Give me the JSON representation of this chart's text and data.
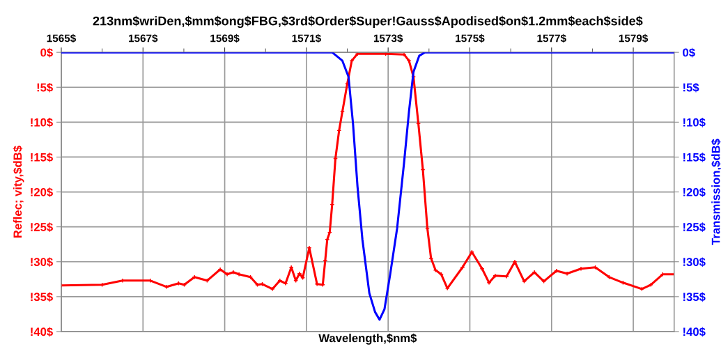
{
  "chart_data": {
    "type": "line",
    "title": "213nm$wriDen,$mm$ong$FBG,$3rd$Order$Super!Gauss$Apodised$on$1.2mm$each$side$",
    "xlabel": "Wavelength,$nm$",
    "ylabel": "Reflec; vity,$dB$",
    "y2label": "Transmission,$dB$",
    "xlim": [
      1565,
      1580
    ],
    "xticks": [
      {
        "value": 1565,
        "label": "1565$"
      },
      {
        "value": 1566,
        "label": null
      },
      {
        "value": 1567,
        "label": "1567$"
      },
      {
        "value": 1568,
        "label": null
      },
      {
        "value": 1569,
        "label": "1569$"
      },
      {
        "value": 1570,
        "label": null
      },
      {
        "value": 1571,
        "label": "1571$"
      },
      {
        "value": 1572,
        "label": null
      },
      {
        "value": 1573,
        "label": "1573$"
      },
      {
        "value": 1574,
        "label": null
      },
      {
        "value": 1575,
        "label": "1575$"
      },
      {
        "value": 1576,
        "label": null
      },
      {
        "value": 1577,
        "label": "1577$"
      },
      {
        "value": 1578,
        "label": null
      },
      {
        "value": 1579,
        "label": "1579$"
      }
    ],
    "ylim": [
      -40,
      0
    ],
    "yticks": [
      {
        "value": 0,
        "label": "0$"
      },
      {
        "value": -5,
        "label": "!5$"
      },
      {
        "value": -10,
        "label": "!10$"
      },
      {
        "value": -15,
        "label": "!15$"
      },
      {
        "value": -20,
        "label": "!20$"
      },
      {
        "value": -25,
        "label": "!25$"
      },
      {
        "value": -30,
        "label": "!30$"
      },
      {
        "value": -35,
        "label": "!35$"
      },
      {
        "value": -40,
        "label": "!40$"
      }
    ],
    "y2lim": [
      -40,
      0
    ],
    "y2ticks": [
      {
        "value": 0,
        "label": "0$"
      },
      {
        "value": -5,
        "label": "!5$"
      },
      {
        "value": -10,
        "label": "!10$"
      },
      {
        "value": -15,
        "label": "!15$"
      },
      {
        "value": -20,
        "label": "!20$"
      },
      {
        "value": -25,
        "label": "!25$"
      },
      {
        "value": -30,
        "label": "!30$"
      },
      {
        "value": -35,
        "label": "!35$"
      },
      {
        "value": -40,
        "label": "!40$"
      }
    ],
    "grid": true,
    "series": [
      {
        "color": "#ff0000",
        "marker": "cross",
        "x": [
          1565.0,
          1566.0,
          1566.5,
          1567.18,
          1567.58,
          1567.87,
          1568.01,
          1568.26,
          1568.57,
          1568.89,
          1569.06,
          1569.21,
          1569.35,
          1569.63,
          1569.8,
          1569.92,
          1570.17,
          1570.35,
          1570.49,
          1570.63,
          1570.74,
          1570.83,
          1570.91,
          1571.07,
          1571.26,
          1571.4,
          1571.46,
          1571.51,
          1571.57,
          1571.63,
          1571.71,
          1571.8,
          1571.88,
          1572.0,
          1572.11,
          1572.25,
          1572.94,
          1573.39,
          1573.51,
          1573.62,
          1573.74,
          1573.85,
          1573.96,
          1574.05,
          1574.16,
          1574.3,
          1574.45,
          1574.82,
          1575.05,
          1575.3,
          1575.47,
          1575.62,
          1575.9,
          1576.1,
          1576.33,
          1576.58,
          1576.81,
          1577.12,
          1577.38,
          1577.72,
          1578.07,
          1578.41,
          1578.75,
          1579.21,
          1579.43,
          1579.72,
          1580.0
        ],
        "values": [
          -33.4,
          -33.3,
          -32.7,
          -32.7,
          -33.6,
          -33.1,
          -33.3,
          -32.2,
          -32.7,
          -31.1,
          -31.8,
          -31.5,
          -31.8,
          -32.2,
          -33.3,
          -33.2,
          -33.9,
          -32.7,
          -33.1,
          -30.8,
          -32.7,
          -31.7,
          -32.3,
          -28.0,
          -33.2,
          -33.3,
          -29.8,
          -26.8,
          -25.8,
          -21.8,
          -15.2,
          -11.2,
          -8.5,
          -4.5,
          -1.2,
          -0.2,
          -0.2,
          -0.3,
          -1.2,
          -3.5,
          -10.2,
          -16.8,
          -25.2,
          -29.5,
          -31.2,
          -31.8,
          -33.8,
          -30.8,
          -28.6,
          -31.0,
          -33.0,
          -32.0,
          -32.1,
          -30.0,
          -32.8,
          -31.5,
          -32.8,
          -31.3,
          -31.7,
          -31.0,
          -30.8,
          -32.2,
          -33.0,
          -33.9,
          -33.3,
          -31.8,
          -31.8
        ]
      },
      {
        "color": "#0000ff",
        "axis": "y2",
        "marker": "none",
        "x": [
          1565.0,
          1571.63,
          1571.88,
          1572.03,
          1572.14,
          1572.25,
          1572.37,
          1572.54,
          1572.68,
          1572.79,
          1572.91,
          1573.05,
          1573.22,
          1573.39,
          1573.51,
          1573.62,
          1573.76,
          1573.9,
          1580.0
        ],
        "values": [
          0,
          0,
          -1.2,
          -3.5,
          -10.2,
          -19.2,
          -26.8,
          -34.5,
          -37.2,
          -38.3,
          -36.8,
          -31.8,
          -25.2,
          -15.8,
          -8.5,
          -2.8,
          -0.5,
          0,
          0
        ]
      }
    ]
  }
}
